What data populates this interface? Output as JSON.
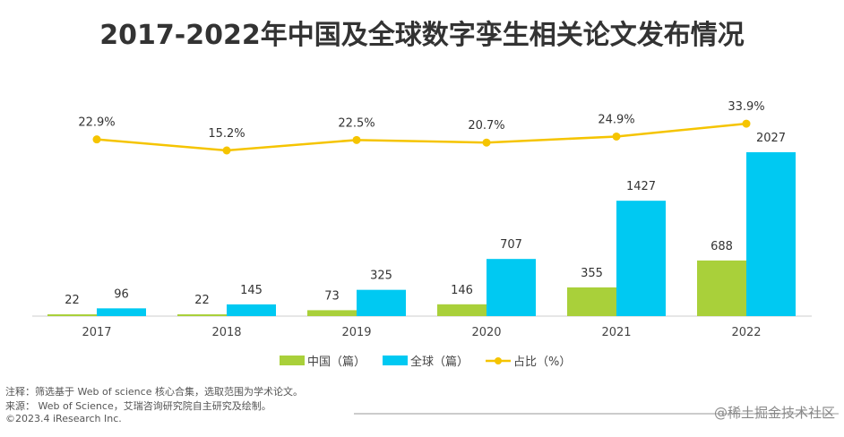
{
  "chart_data": {
    "type": "bar",
    "title": "2017-2022年中国及全球数字孪生相关论文发布情况",
    "categories": [
      "2017",
      "2018",
      "2019",
      "2020",
      "2021",
      "2022"
    ],
    "series": [
      {
        "name": "中国（篇）",
        "type": "bar",
        "color": "#a9d03a",
        "values": [
          22,
          22,
          73,
          146,
          355,
          688
        ]
      },
      {
        "name": "全球（篇）",
        "type": "bar",
        "color": "#00c9f2",
        "values": [
          96,
          145,
          325,
          707,
          1427,
          2027
        ]
      },
      {
        "name": "占比（%）",
        "type": "line",
        "color": "#f5c400",
        "values": [
          22.9,
          15.2,
          22.5,
          20.7,
          24.9,
          33.9
        ],
        "labels": [
          "22.9%",
          "15.2%",
          "22.5%",
          "20.7%",
          "24.9%",
          "33.9%"
        ]
      }
    ],
    "legend": "bottom",
    "grid": false
  },
  "footer": {
    "note": "注释：筛选基于 Web of science 核心合集，选取范围为学术论文。",
    "source": "来源：  Web of Science，艾瑞咨询研究院自主研究及绘制。",
    "copyright": "©2023.4 iResearch Inc.",
    "watermark": "@稀土掘金技术社区"
  }
}
